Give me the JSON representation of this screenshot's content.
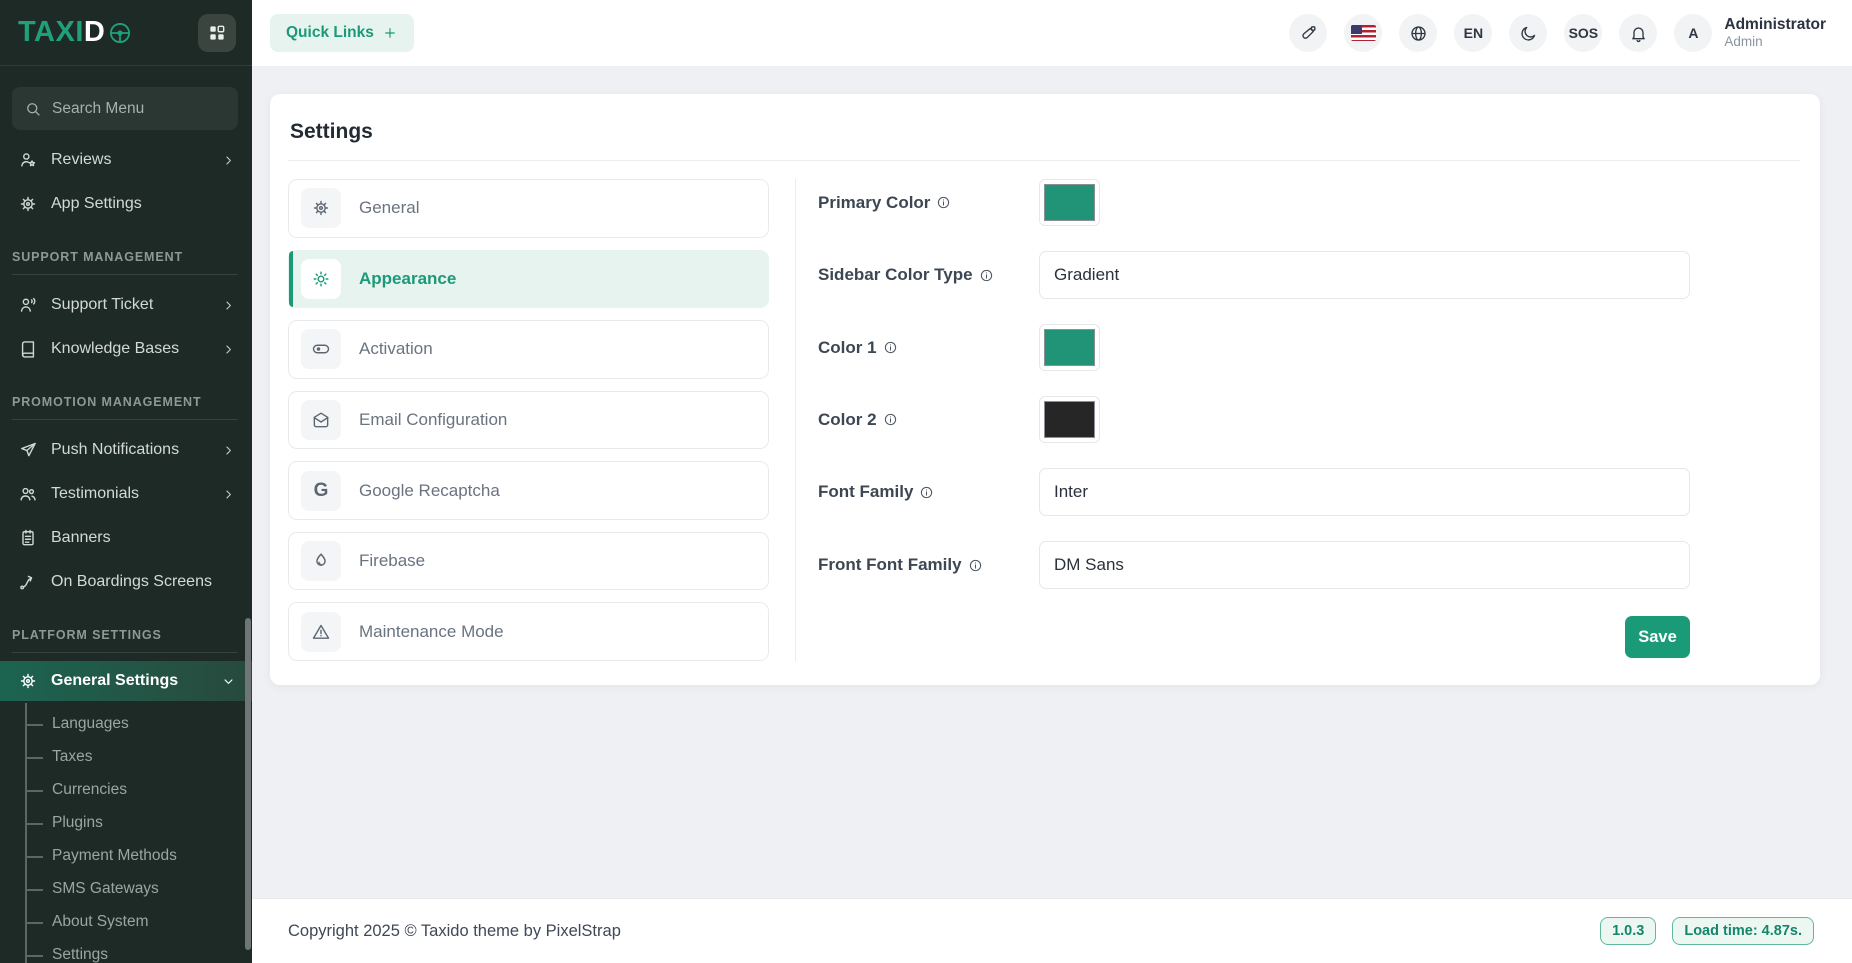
{
  "brand": {
    "logo_primary": "TAXI",
    "logo_secondary": "D"
  },
  "sidebar": {
    "search_placeholder": "Search Menu",
    "groups": [
      {
        "heading": "",
        "items": [
          {
            "label": "Reviews",
            "icon": "user-star",
            "chevron": "right"
          },
          {
            "label": "App Settings",
            "icon": "gear"
          }
        ]
      },
      {
        "heading": "SUPPORT MANAGEMENT",
        "items": [
          {
            "label": "Support Ticket",
            "icon": "user-voice",
            "chevron": "right"
          },
          {
            "label": "Knowledge Bases",
            "icon": "book",
            "chevron": "right"
          }
        ]
      },
      {
        "heading": "PROMOTION MANAGEMENT",
        "items": [
          {
            "label": "Push Notifications",
            "icon": "send",
            "chevron": "right"
          },
          {
            "label": "Testimonials",
            "icon": "users",
            "chevron": "right"
          },
          {
            "label": "Banners",
            "icon": "clipboard"
          },
          {
            "label": "On Boardings Screens",
            "icon": "route"
          }
        ]
      },
      {
        "heading": "PLATFORM SETTINGS",
        "items": [
          {
            "label": "General Settings",
            "icon": "gear",
            "chevron": "down",
            "active": true,
            "children": [
              "Languages",
              "Taxes",
              "Currencies",
              "Plugins",
              "Payment Methods",
              "SMS Gateways",
              "About System",
              "Settings"
            ]
          }
        ]
      }
    ]
  },
  "header": {
    "quick_links_label": "Quick Links",
    "actions": [
      {
        "name": "customizer",
        "type": "icon",
        "icon": "brush"
      },
      {
        "name": "flag-us",
        "type": "flag"
      },
      {
        "name": "globe",
        "type": "icon",
        "icon": "globe"
      },
      {
        "name": "language",
        "type": "text",
        "label": "EN"
      },
      {
        "name": "dark-mode",
        "type": "icon",
        "icon": "moon"
      },
      {
        "name": "sos",
        "type": "text",
        "label": "SOS"
      },
      {
        "name": "notifications",
        "type": "icon",
        "icon": "bell"
      },
      {
        "name": "avatar",
        "type": "text",
        "label": "A"
      }
    ],
    "user": {
      "name": "Administrator",
      "role": "Admin"
    }
  },
  "main": {
    "page_title": "Settings",
    "tabs": [
      {
        "label": "General",
        "icon": "gear"
      },
      {
        "label": "Appearance",
        "icon": "sun",
        "active": true
      },
      {
        "label": "Activation",
        "icon": "toggle"
      },
      {
        "label": "Email Configuration",
        "icon": "mail"
      },
      {
        "label": "Google Recaptcha",
        "icon": "letter-g"
      },
      {
        "label": "Firebase",
        "icon": "flame"
      },
      {
        "label": "Maintenance Mode",
        "icon": "warning"
      }
    ],
    "form": {
      "fields": [
        {
          "label": "Primary Color",
          "type": "color",
          "value": "#219377"
        },
        {
          "label": "Sidebar Color Type",
          "type": "text",
          "value": "Gradient"
        },
        {
          "label": "Color 1",
          "type": "color",
          "value": "#219377"
        },
        {
          "label": "Color 2",
          "type": "color",
          "value": "#262626"
        },
        {
          "label": "Font Family",
          "type": "text",
          "value": "Inter"
        },
        {
          "label": "Front Font Family",
          "type": "text",
          "value": "DM Sans"
        }
      ],
      "save_label": "Save"
    }
  },
  "footer": {
    "copyright": "Copyright 2025 © Taxido theme by PixelStrap",
    "version": "1.0.3",
    "load_time": "Load time: 4.87s."
  },
  "colors": {
    "primary": "#1b9a77",
    "sidebar_background": "#1d2a25",
    "active_tab_background": "#e7f3ee",
    "swatch_green": "#219377",
    "swatch_dark": "#262626"
  }
}
